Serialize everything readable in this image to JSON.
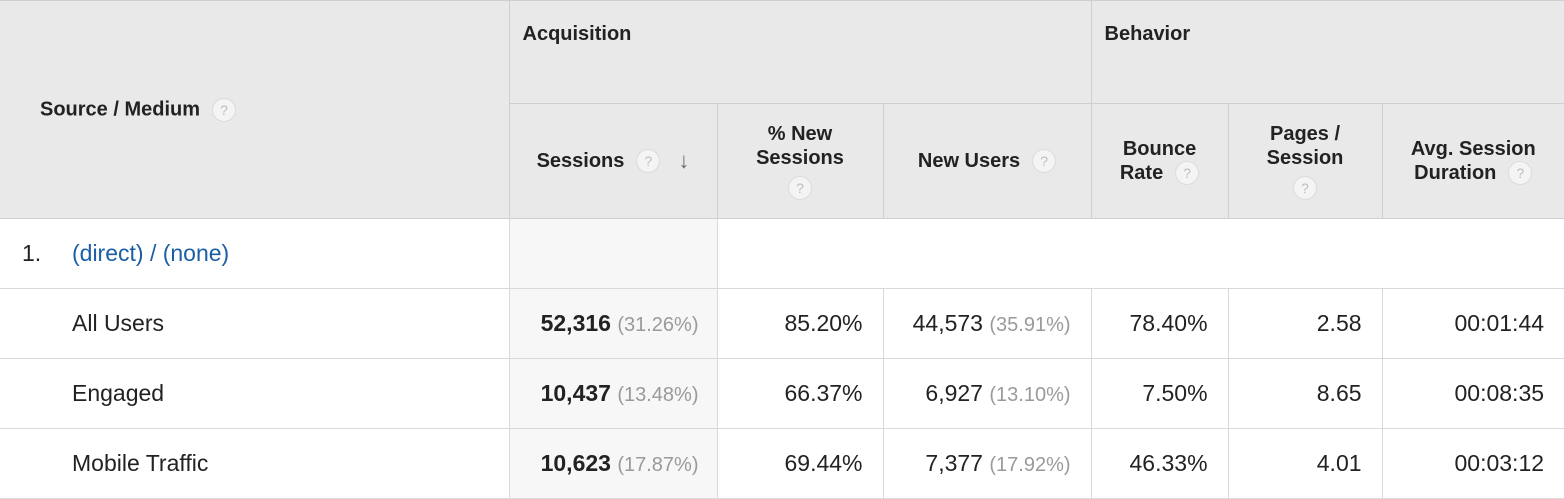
{
  "headers": {
    "source_medium": "Source / Medium",
    "acquisition": "Acquisition",
    "behavior": "Behavior",
    "sessions": "Sessions",
    "pct_new_sessions_l1": "% New",
    "pct_new_sessions_l2": "Sessions",
    "new_users": "New Users",
    "bounce_rate_l1": "Bounce",
    "bounce_rate_l2": "Rate",
    "pages_session_l1": "Pages /",
    "pages_session_l2": "Session",
    "avg_session_l1": "Avg. Session",
    "avg_session_l2": "Duration"
  },
  "help_glyph": "?",
  "sort_glyph": "↓",
  "group": {
    "index": "1.",
    "label": "(direct) / (none)"
  },
  "rows": [
    {
      "label": "All Users",
      "sessions": "52,316",
      "sessions_pct": "(31.26%)",
      "pct_new": "85.20%",
      "new_users": "44,573",
      "new_users_pct": "(35.91%)",
      "bounce": "78.40%",
      "pages": "2.58",
      "duration": "00:01:44"
    },
    {
      "label": "Engaged",
      "sessions": "10,437",
      "sessions_pct": "(13.48%)",
      "pct_new": "66.37%",
      "new_users": "6,927",
      "new_users_pct": "(13.10%)",
      "bounce": "7.50%",
      "pages": "8.65",
      "duration": "00:08:35"
    },
    {
      "label": "Mobile Traffic",
      "sessions": "10,623",
      "sessions_pct": "(17.87%)",
      "pct_new": "69.44%",
      "new_users": "7,377",
      "new_users_pct": "(17.92%)",
      "bounce": "46.33%",
      "pages": "4.01",
      "duration": "00:03:12"
    }
  ]
}
